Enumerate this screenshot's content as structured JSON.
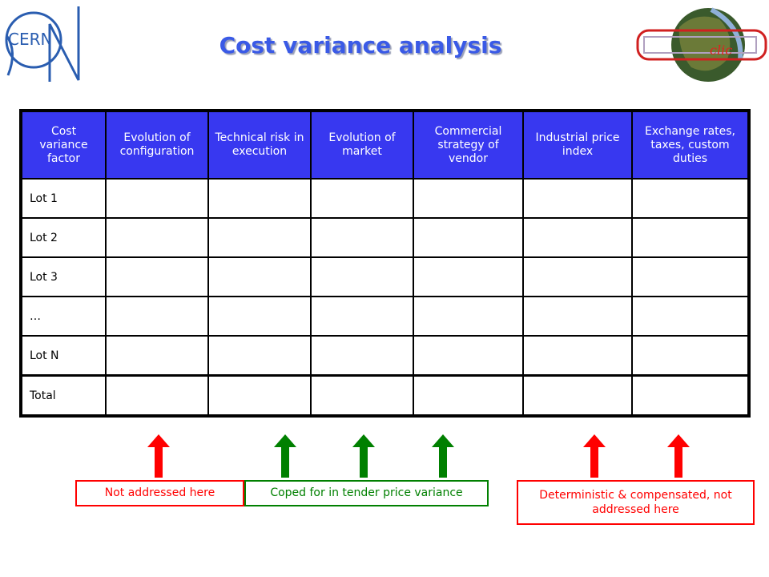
{
  "title": "Cost variance analysis",
  "logos": {
    "cern": "CERN",
    "clic": "clic"
  },
  "table": {
    "headers": [
      "Cost variance factor",
      "Evolution of configuration",
      "Technical risk in execution",
      "Evolution of market",
      "Commercial strategy of vendor",
      "Industrial price index",
      "Exchange rates, taxes, custom duties"
    ],
    "rows": [
      "Lot 1",
      "Lot 2",
      "Lot 3",
      "…",
      "Lot N",
      "Total"
    ]
  },
  "legend": {
    "not_addressed": "Not addressed here",
    "coped_for": "Coped for in tender price variance",
    "deterministic": "Deterministic & compensated, not addressed here"
  },
  "colors": {
    "header_bg": "#3838f0",
    "title": "#3a5ae6",
    "red": "#ff0000",
    "green": "#008000"
  }
}
